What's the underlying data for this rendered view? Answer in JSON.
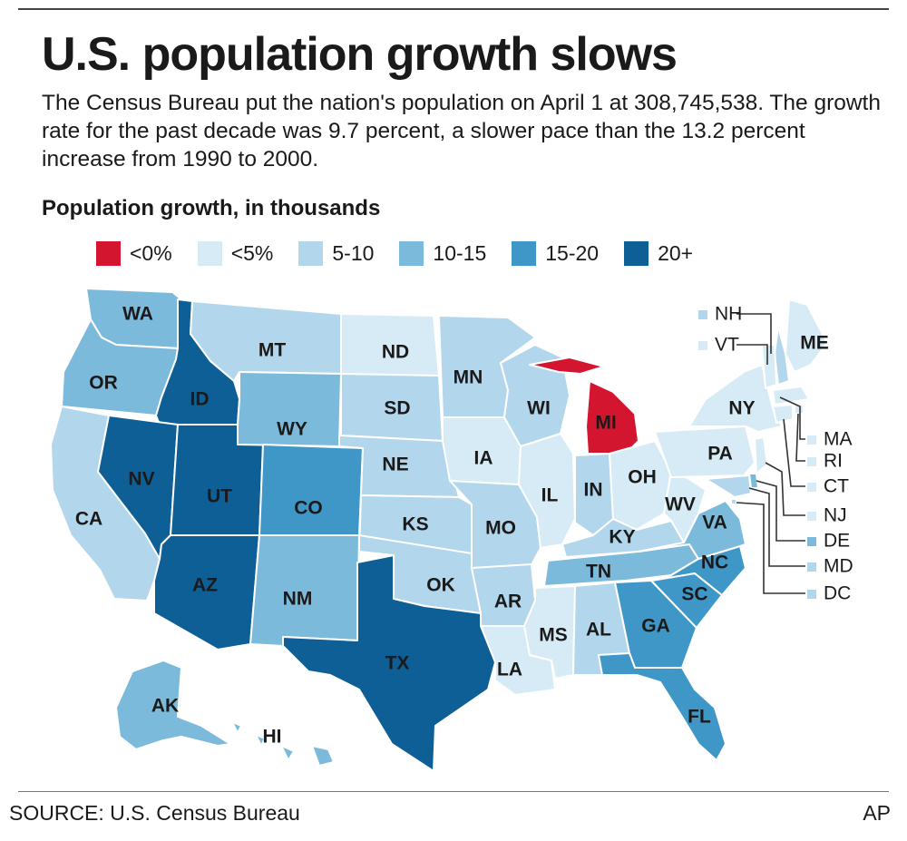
{
  "header": {
    "title": "U.S. population growth slows",
    "subtitle": "The Census Bureau put the nation's population on April 1 at 308,745,538. The growth rate for the past decade was 9.7 percent, a slower pace than the 13.2 percent increase from 1990 to 2000."
  },
  "legend": {
    "title": "Population growth, in thousands",
    "items": [
      {
        "label": "<0%",
        "color": "#d4152f"
      },
      {
        "label": "<5%",
        "color": "#d6ebf5"
      },
      {
        "label": "5-10",
        "color": "#b2d6eb"
      },
      {
        "label": "10-15",
        "color": "#7cbadc"
      },
      {
        "label": "15-20",
        "color": "#3f97c8"
      },
      {
        "label": "20+",
        "color": "#0e5f95"
      }
    ]
  },
  "states": [
    {
      "abbr": "WA",
      "category": "10-15"
    },
    {
      "abbr": "OR",
      "category": "10-15"
    },
    {
      "abbr": "CA",
      "category": "5-10"
    },
    {
      "abbr": "ID",
      "category": "20+"
    },
    {
      "abbr": "NV",
      "category": "20+"
    },
    {
      "abbr": "UT",
      "category": "20+"
    },
    {
      "abbr": "AZ",
      "category": "20+"
    },
    {
      "abbr": "MT",
      "category": "5-10"
    },
    {
      "abbr": "WY",
      "category": "10-15"
    },
    {
      "abbr": "CO",
      "category": "15-20"
    },
    {
      "abbr": "NM",
      "category": "10-15"
    },
    {
      "abbr": "ND",
      "category": "<5%"
    },
    {
      "abbr": "SD",
      "category": "5-10"
    },
    {
      "abbr": "NE",
      "category": "5-10"
    },
    {
      "abbr": "KS",
      "category": "5-10"
    },
    {
      "abbr": "OK",
      "category": "5-10"
    },
    {
      "abbr": "TX",
      "category": "20+"
    },
    {
      "abbr": "MN",
      "category": "5-10"
    },
    {
      "abbr": "IA",
      "category": "<5%"
    },
    {
      "abbr": "MO",
      "category": "5-10"
    },
    {
      "abbr": "AR",
      "category": "5-10"
    },
    {
      "abbr": "LA",
      "category": "<5%"
    },
    {
      "abbr": "WI",
      "category": "5-10"
    },
    {
      "abbr": "IL",
      "category": "<5%"
    },
    {
      "abbr": "MI",
      "category": "<0%"
    },
    {
      "abbr": "IN",
      "category": "5-10"
    },
    {
      "abbr": "OH",
      "category": "<5%"
    },
    {
      "abbr": "KY",
      "category": "5-10"
    },
    {
      "abbr": "TN",
      "category": "10-15"
    },
    {
      "abbr": "MS",
      "category": "<5%"
    },
    {
      "abbr": "AL",
      "category": "5-10"
    },
    {
      "abbr": "GA",
      "category": "15-20"
    },
    {
      "abbr": "FL",
      "category": "15-20"
    },
    {
      "abbr": "SC",
      "category": "15-20"
    },
    {
      "abbr": "NC",
      "category": "15-20"
    },
    {
      "abbr": "VA",
      "category": "10-15"
    },
    {
      "abbr": "WV",
      "category": "<5%"
    },
    {
      "abbr": "PA",
      "category": "<5%"
    },
    {
      "abbr": "NY",
      "category": "<5%"
    },
    {
      "abbr": "ME",
      "category": "<5%"
    },
    {
      "abbr": "NH",
      "category": "5-10"
    },
    {
      "abbr": "VT",
      "category": "<5%"
    },
    {
      "abbr": "MA",
      "category": "<5%"
    },
    {
      "abbr": "RI",
      "category": "<5%"
    },
    {
      "abbr": "CT",
      "category": "<5%"
    },
    {
      "abbr": "NJ",
      "category": "<5%"
    },
    {
      "abbr": "DE",
      "category": "10-15"
    },
    {
      "abbr": "MD",
      "category": "5-10"
    },
    {
      "abbr": "DC",
      "category": "5-10"
    },
    {
      "abbr": "AK",
      "category": "10-15"
    },
    {
      "abbr": "HI",
      "category": "10-15"
    }
  ],
  "footer": {
    "source": "SOURCE: U.S. Census Bureau",
    "credit": "AP"
  }
}
